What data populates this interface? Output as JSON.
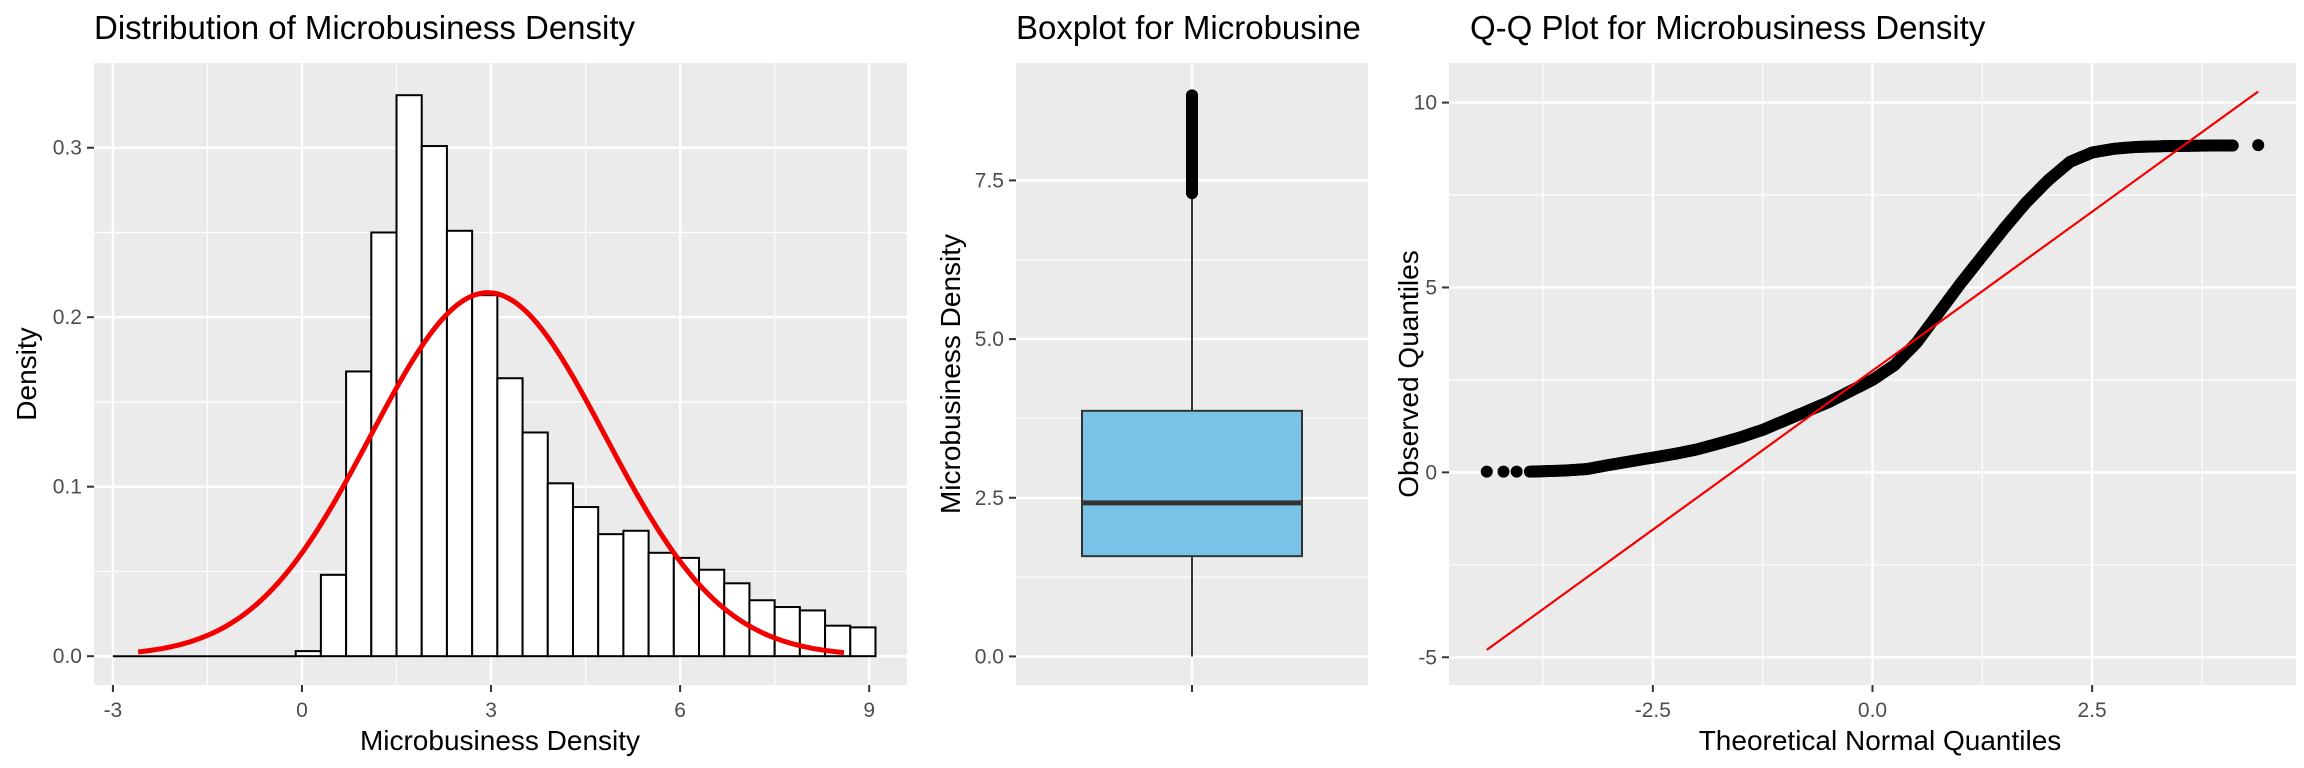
{
  "chart_data": [
    {
      "type": "histogram",
      "title": "Distribution of Microbusiness Density",
      "xlabel": "Microbusiness Density",
      "ylabel": "Density",
      "xlim": [
        -3.3,
        9.6
      ],
      "ylim": [
        -0.017,
        0.35
      ],
      "x_ticks": [
        -3,
        0,
        3,
        6,
        9
      ],
      "x_tick_labels": [
        "-3",
        "0",
        "3",
        "6",
        "9"
      ],
      "y_ticks": [
        0.0,
        0.1,
        0.2,
        0.3
      ],
      "y_tick_labels": [
        "0.0",
        "0.1",
        "0.2",
        "0.3"
      ],
      "grid": true,
      "bin_width": 0.4,
      "bins": [
        {
          "x0": -0.1,
          "x1": 0.3,
          "density": 0.003
        },
        {
          "x0": 0.3,
          "x1": 0.7,
          "density": 0.048
        },
        {
          "x0": 0.7,
          "x1": 1.1,
          "density": 0.168
        },
        {
          "x0": 1.1,
          "x1": 1.5,
          "density": 0.25
        },
        {
          "x0": 1.5,
          "x1": 1.9,
          "density": 0.331
        },
        {
          "x0": 1.9,
          "x1": 2.3,
          "density": 0.301
        },
        {
          "x0": 2.3,
          "x1": 2.7,
          "density": 0.251
        },
        {
          "x0": 2.7,
          "x1": 3.1,
          "density": 0.213
        },
        {
          "x0": 3.1,
          "x1": 3.5,
          "density": 0.164
        },
        {
          "x0": 3.5,
          "x1": 3.9,
          "density": 0.132
        },
        {
          "x0": 3.9,
          "x1": 4.3,
          "density": 0.102
        },
        {
          "x0": 4.3,
          "x1": 4.7,
          "density": 0.088
        },
        {
          "x0": 4.7,
          "x1": 5.1,
          "density": 0.072
        },
        {
          "x0": 5.1,
          "x1": 5.5,
          "density": 0.074
        },
        {
          "x0": 5.5,
          "x1": 5.9,
          "density": 0.061
        },
        {
          "x0": 5.9,
          "x1": 6.3,
          "density": 0.058
        },
        {
          "x0": 6.3,
          "x1": 6.7,
          "density": 0.051
        },
        {
          "x0": 6.7,
          "x1": 7.1,
          "density": 0.043
        },
        {
          "x0": 7.1,
          "x1": 7.5,
          "density": 0.033
        },
        {
          "x0": 7.5,
          "x1": 7.9,
          "density": 0.029
        },
        {
          "x0": 7.9,
          "x1": 8.3,
          "density": 0.027
        },
        {
          "x0": 8.3,
          "x1": 8.7,
          "density": 0.018
        },
        {
          "x0": 8.7,
          "x1": 9.1,
          "density": 0.017
        }
      ],
      "empty_range": [
        -3.0,
        -0.1
      ],
      "normal_curve": {
        "mean": 2.95,
        "sd": 1.86,
        "x_range": [
          -2.6,
          8.6
        ],
        "color": "#f20000"
      },
      "bar_fill": "#ffffff",
      "bar_stroke": "#000000"
    },
    {
      "type": "boxplot",
      "title": "Boxplot for Microbusine",
      "xlabel": "",
      "ylabel": "Microbusiness Density",
      "ylim": [
        -0.45,
        9.35
      ],
      "y_ticks": [
        0.0,
        2.5,
        5.0,
        7.5
      ],
      "y_tick_labels": [
        "0.0",
        "2.5",
        "5.0",
        "7.5"
      ],
      "grid": true,
      "box": {
        "min": 0.0,
        "q1": 1.58,
        "median": 2.42,
        "q3": 3.87,
        "whisker_high": 7.3
      },
      "outliers_range": [
        7.3,
        8.85
      ],
      "box_fill": "#79c3e6"
    },
    {
      "type": "scatter",
      "title": "Q-Q Plot for Microbusiness Density",
      "xlabel": "Theoretical Normal Quantiles",
      "ylabel": "Observed Quantiles",
      "xlim": [
        -4.82,
        4.82
      ],
      "ylim": [
        -5.75,
        11.07
      ],
      "x_ticks": [
        -2.5,
        0.0,
        2.5
      ],
      "x_tick_labels": [
        "-2.5",
        "0.0",
        "2.5"
      ],
      "y_ticks": [
        -5,
        0,
        5,
        10
      ],
      "y_tick_labels": [
        "-5",
        "0",
        "5",
        "10"
      ],
      "grid": true,
      "reference_line": {
        "x": [
          -4.39,
          4.39
        ],
        "y": [
          -4.8,
          10.3
        ],
        "color": "#f20000"
      },
      "points": [
        [
          -4.39,
          0.02
        ],
        [
          -4.2,
          0.02
        ],
        [
          -4.05,
          0.02
        ],
        [
          -3.9,
          0.02
        ],
        [
          -3.75,
          0.03
        ],
        [
          -3.5,
          0.05
        ],
        [
          -3.25,
          0.09
        ],
        [
          -3.0,
          0.2
        ],
        [
          -2.75,
          0.3
        ],
        [
          -2.5,
          0.4
        ],
        [
          -2.25,
          0.5
        ],
        [
          -2.0,
          0.62
        ],
        [
          -1.75,
          0.78
        ],
        [
          -1.5,
          0.95
        ],
        [
          -1.25,
          1.15
        ],
        [
          -1.0,
          1.4
        ],
        [
          -0.75,
          1.65
        ],
        [
          -0.5,
          1.9
        ],
        [
          -0.25,
          2.2
        ],
        [
          0.0,
          2.5
        ],
        [
          0.25,
          2.9
        ],
        [
          0.5,
          3.5
        ],
        [
          0.75,
          4.3
        ],
        [
          1.0,
          5.1
        ],
        [
          1.25,
          5.85
        ],
        [
          1.5,
          6.6
        ],
        [
          1.75,
          7.3
        ],
        [
          2.0,
          7.9
        ],
        [
          2.25,
          8.4
        ],
        [
          2.5,
          8.65
        ],
        [
          2.75,
          8.75
        ],
        [
          3.0,
          8.8
        ],
        [
          3.3,
          8.82
        ],
        [
          3.6,
          8.83
        ],
        [
          3.9,
          8.84
        ],
        [
          4.1,
          8.84
        ],
        [
          4.39,
          8.85
        ]
      ]
    }
  ]
}
